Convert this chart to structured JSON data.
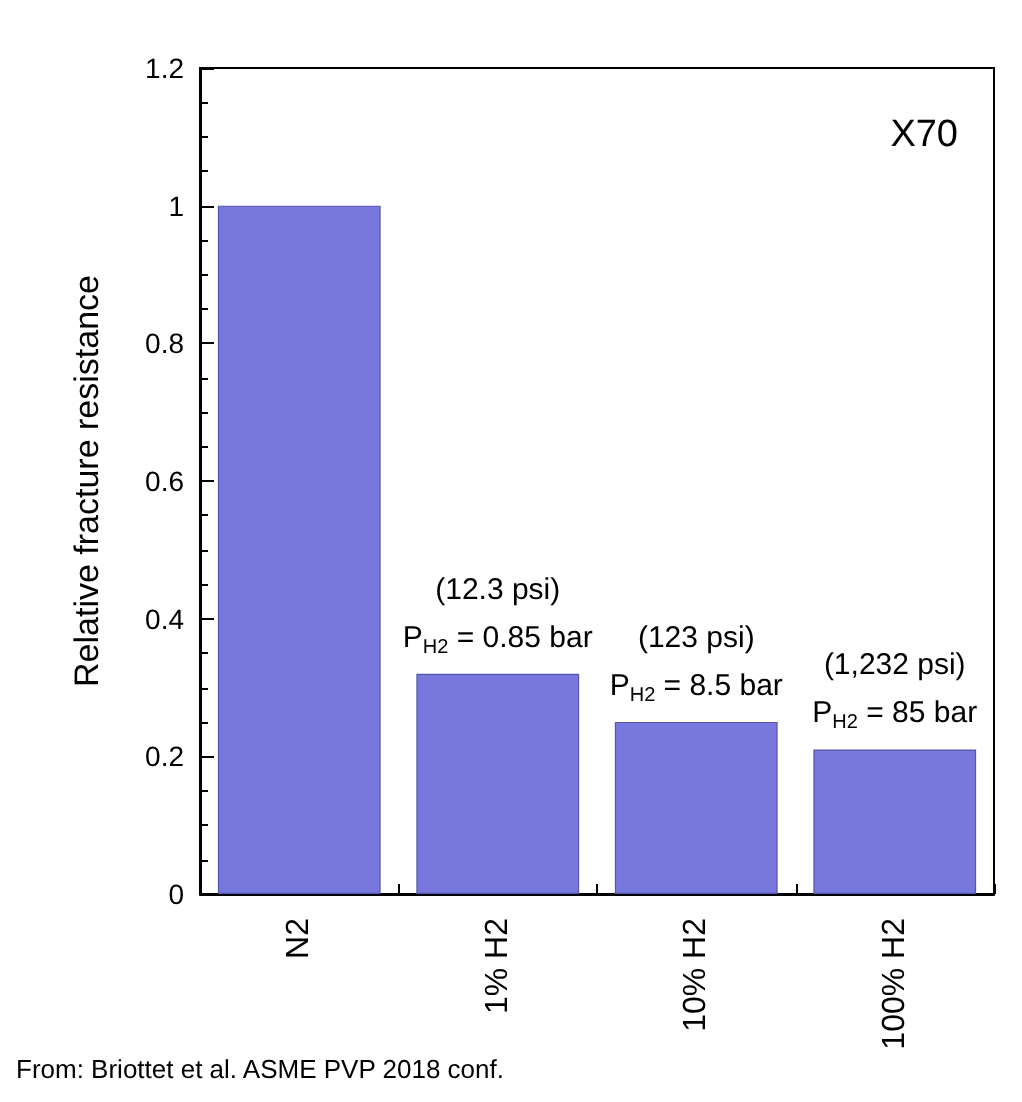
{
  "chart_data": {
    "type": "bar",
    "ylabel": "Relative fracture resistance",
    "categories": [
      "N2",
      "1% H2",
      "10% H2",
      "100% H2"
    ],
    "values": [
      1,
      0.32,
      0.25,
      0.21
    ],
    "color": "#7777dd",
    "ylim": [
      0,
      1.2
    ],
    "yticks": [
      0,
      0.2,
      0.4,
      0.6,
      0.8,
      1,
      1.2
    ],
    "grid": false,
    "annotations": [
      "X70",
      "From: Briottet et al. ASME PVP 2018 conf.",
      "(12.3 psi)",
      "P$_{H2}$ = 0.85 bar",
      "(123 psi)",
      "P$_{H2}$ = 8.5 bar",
      "(1,232 psi)",
      "P$_{H2}$ = 85 bar"
    ]
  }
}
